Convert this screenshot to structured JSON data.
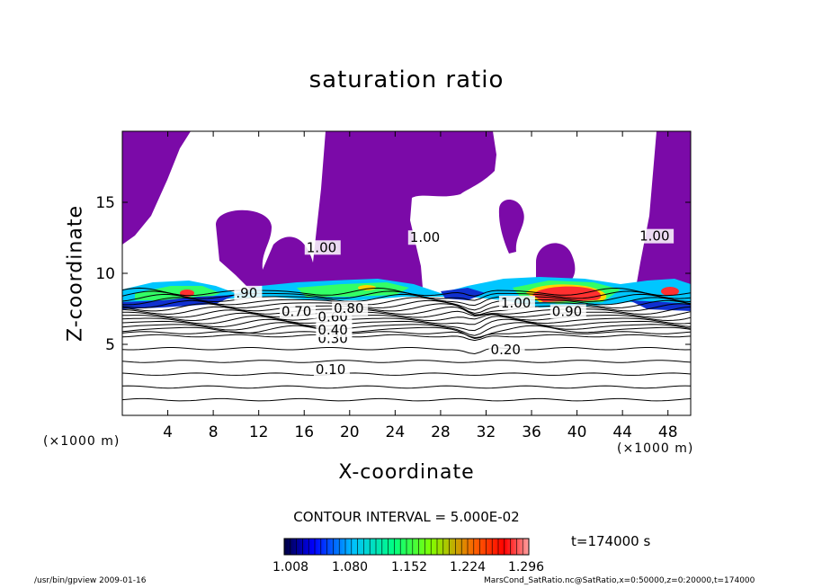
{
  "chart_data": {
    "type": "contour",
    "title": "saturation ratio",
    "xlabel": "X-coordinate",
    "ylabel": "Z-coordinate",
    "x_unit": "(×1000 m)",
    "y_unit": "(×1000 m)",
    "xlim": [
      0,
      50
    ],
    "ylim": [
      0,
      20
    ],
    "x_ticks": [
      4,
      8,
      12,
      16,
      20,
      24,
      28,
      32,
      36,
      40,
      44,
      48
    ],
    "y_ticks": [
      5,
      10,
      15
    ],
    "contour_labels": [
      {
        "text": "0.10",
        "x": 17.0,
        "y": 2.9
      },
      {
        "text": "0.20",
        "x": 32.4,
        "y": 4.3
      },
      {
        "text": "0.30",
        "x": 17.2,
        "y": 5.1
      },
      {
        "text": "0.40",
        "x": 17.2,
        "y": 5.7
      },
      {
        "text": "0.60",
        "x": 17.2,
        "y": 6.6
      },
      {
        "text": "0.70",
        "x": 14.0,
        "y": 7.0
      },
      {
        "text": "0.80",
        "x": 18.6,
        "y": 7.2
      },
      {
        "text": ".90",
        "x": 10.0,
        "y": 8.3
      },
      {
        "text": "1.00",
        "x": 16.2,
        "y": 11.5
      },
      {
        "text": "1.00",
        "x": 25.3,
        "y": 12.2
      },
      {
        "text": "1.00",
        "x": 45.5,
        "y": 12.3
      },
      {
        "text": "1.00",
        "x": 33.3,
        "y": 7.6
      },
      {
        "text": "0.90",
        "x": 37.8,
        "y": 7.0
      }
    ],
    "contour_interval_text": "CONTOUR INTERVAL = 5.000E-02",
    "time_label": "t=174000  s",
    "colorbar": {
      "ticks": [
        "1.008",
        "1.080",
        "1.152",
        "1.224",
        "1.296"
      ],
      "colors": [
        "#00008b",
        "#0000ff",
        "#00bfff",
        "#00ff7f",
        "#7fff00",
        "#ff8c00",
        "#ff0000",
        "#ff9090"
      ]
    },
    "saturated_region_color": "#7b0aa8"
  },
  "footer": {
    "left": "/usr/bin/gpview    2009-01-16",
    "right": "MarsCond_SatRatio.nc@SatRatio,x=0:50000,z=0:20000,t=174000"
  }
}
